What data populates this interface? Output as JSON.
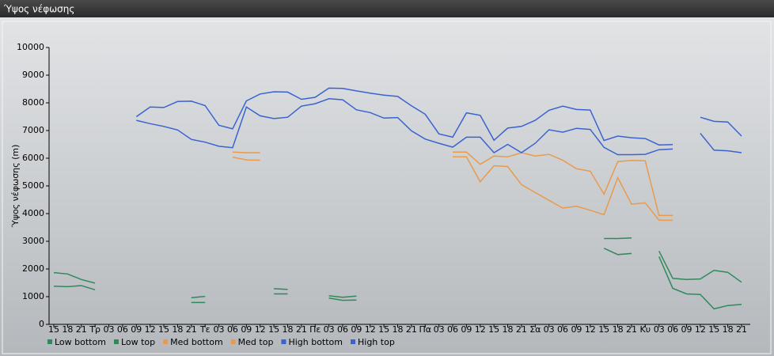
{
  "chart_data": {
    "type": "line",
    "title": "Ύψος νέφωσης",
    "y_label": "Ύψος νέφωσης (m)",
    "categories": [
      "15",
      "18",
      "21",
      "Τρ",
      "03",
      "06",
      "09",
      "12",
      "15",
      "18",
      "21",
      "Τε",
      "03",
      "06",
      "09",
      "12",
      "15",
      "18",
      "21",
      "Πε",
      "03",
      "06",
      "09",
      "12",
      "15",
      "18",
      "21",
      "Πα",
      "03",
      "06",
      "09",
      "12",
      "15",
      "18",
      "21",
      "Σα",
      "03",
      "06",
      "09",
      "12",
      "15",
      "18",
      "21",
      "Κυ",
      "03",
      "06",
      "09",
      "12",
      "15",
      "18",
      "21"
    ],
    "ylim": [
      0,
      10000
    ],
    "yticks": [
      0,
      1000,
      2000,
      3000,
      4000,
      5000,
      6000,
      7000,
      8000,
      9000,
      10000
    ],
    "grid": false,
    "legend": "bottom",
    "series": [
      {
        "name": "Low bottom",
        "color": "#2f8a5a",
        "values": [
          1380,
          1360,
          1400,
          1250,
          null,
          null,
          null,
          null,
          null,
          null,
          790,
          790,
          null,
          null,
          null,
          null,
          1100,
          1100,
          null,
          null,
          950,
          870,
          880,
          null,
          null,
          null,
          null,
          null,
          null,
          null,
          null,
          null,
          null,
          null,
          null,
          null,
          null,
          null,
          null,
          null,
          2750,
          2520,
          2560,
          null,
          2450,
          1300,
          1100,
          1080,
          560,
          680,
          720
        ]
      },
      {
        "name": "Low top",
        "color": "#2f8a5a",
        "values": [
          1870,
          1820,
          1620,
          1490,
          null,
          null,
          null,
          null,
          null,
          null,
          960,
          1010,
          null,
          null,
          null,
          null,
          1290,
          1260,
          null,
          null,
          1030,
          980,
          1020,
          null,
          null,
          null,
          null,
          null,
          null,
          null,
          null,
          null,
          null,
          null,
          null,
          null,
          null,
          null,
          null,
          null,
          3100,
          3100,
          3120,
          null,
          2650,
          1660,
          1620,
          1640,
          1950,
          1880,
          1520
        ]
      },
      {
        "name": "Med bottom",
        "color": "#e99a4c",
        "values": [
          null,
          null,
          null,
          null,
          null,
          null,
          null,
          null,
          null,
          null,
          null,
          null,
          null,
          6040,
          5940,
          5930,
          null,
          null,
          null,
          null,
          null,
          null,
          null,
          null,
          null,
          null,
          null,
          null,
          null,
          6050,
          6050,
          5150,
          5730,
          5700,
          5050,
          4760,
          4480,
          4200,
          4270,
          4120,
          3960,
          5300,
          4340,
          4390,
          3760,
          3760,
          null,
          null,
          null,
          null,
          null
        ]
      },
      {
        "name": "Med top",
        "color": "#e99a4c",
        "values": [
          null,
          null,
          null,
          null,
          null,
          null,
          null,
          null,
          null,
          null,
          null,
          null,
          null,
          6220,
          6200,
          6200,
          null,
          null,
          null,
          null,
          null,
          null,
          null,
          null,
          null,
          null,
          null,
          null,
          null,
          6220,
          6220,
          5780,
          6080,
          6050,
          6200,
          6080,
          6140,
          5930,
          5620,
          5530,
          4700,
          5880,
          5920,
          5910,
          3930,
          3930,
          null,
          null,
          null,
          null,
          null
        ]
      },
      {
        "name": "High bottom",
        "color": "#3a63d0",
        "values": [
          null,
          null,
          null,
          null,
          null,
          null,
          7370,
          7250,
          7150,
          7020,
          6680,
          6580,
          6430,
          6380,
          7850,
          7530,
          7430,
          7480,
          7880,
          7970,
          8150,
          8110,
          7750,
          7650,
          7450,
          7470,
          6990,
          6690,
          6540,
          6400,
          6760,
          6760,
          6200,
          6500,
          6200,
          6540,
          7030,
          6940,
          7080,
          7040,
          6390,
          6130,
          6130,
          6140,
          6310,
          6330,
          null,
          6900,
          6290,
          6270,
          6200
        ]
      },
      {
        "name": "High top",
        "color": "#3a63d0",
        "values": [
          null,
          null,
          null,
          null,
          null,
          null,
          7500,
          7850,
          7830,
          8050,
          8060,
          7900,
          7190,
          7060,
          8070,
          8320,
          8400,
          8390,
          8130,
          8200,
          8530,
          8520,
          8430,
          8350,
          8280,
          8230,
          7890,
          7590,
          6880,
          6760,
          7640,
          7550,
          6650,
          7090,
          7150,
          7370,
          7730,
          7880,
          7760,
          7740,
          6640,
          6800,
          6740,
          6710,
          6480,
          6490,
          null,
          7480,
          7330,
          7310,
          6800
        ]
      }
    ]
  }
}
